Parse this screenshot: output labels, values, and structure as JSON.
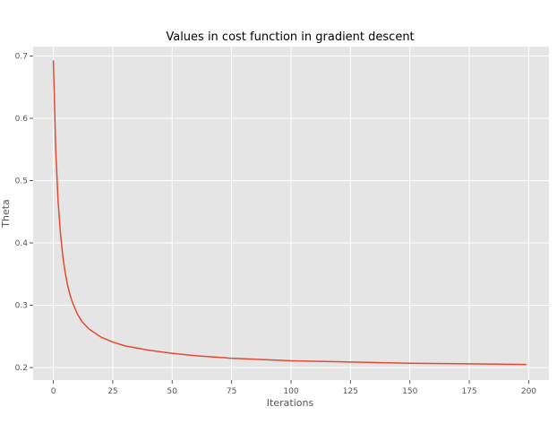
{
  "chart_data": {
    "type": "line",
    "title": "Values in cost function in gradient descent",
    "xlabel": "Iterations",
    "ylabel": "Theta",
    "xlim": [
      -8.5,
      208.5
    ],
    "ylim": [
      0.18,
      0.715
    ],
    "xticks": [
      0,
      25,
      50,
      75,
      100,
      125,
      150,
      175,
      200
    ],
    "yticks": [
      0.2,
      0.3,
      0.4,
      0.5,
      0.6,
      0.7
    ],
    "grid": true,
    "style": "ggplot",
    "background_color": "#e5e5e5",
    "line_color": "#e24a33",
    "series": [
      {
        "x": [
          0,
          1,
          2,
          3,
          4,
          5,
          6,
          7,
          8,
          10,
          12,
          15,
          20,
          25,
          30,
          40,
          50,
          60,
          75,
          100,
          125,
          150,
          175,
          199
        ],
        "values": [
          0.693,
          0.55,
          0.467,
          0.415,
          0.378,
          0.352,
          0.332,
          0.317,
          0.305,
          0.287,
          0.274,
          0.262,
          0.249,
          0.241,
          0.235,
          0.228,
          0.223,
          0.219,
          0.215,
          0.211,
          0.209,
          0.207,
          0.206,
          0.205
        ]
      }
    ]
  }
}
